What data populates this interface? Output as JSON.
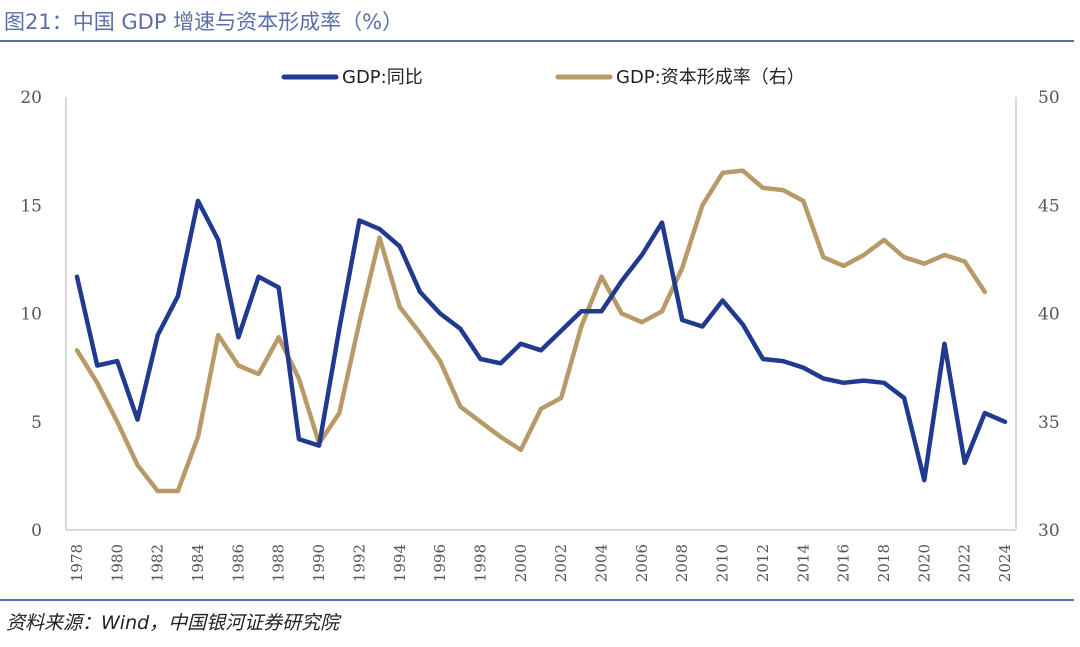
{
  "header": {
    "title": "图21：中国 GDP 增速与资本形成率（%）"
  },
  "footer": {
    "source": "资料来源：Wind，中国银河证券研究院"
  },
  "colors": {
    "accent": "#5a6fa8",
    "gdp_series": "#1f3a8f",
    "capital_series": "#b89968",
    "axis": "#d9d9d9"
  },
  "chart_data": {
    "type": "line",
    "title": "",
    "xlabel": "",
    "ylabel": "",
    "y_left_range": [
      0,
      20
    ],
    "y_left_ticks": [
      "0",
      "5",
      "10",
      "15",
      "20"
    ],
    "y_right_range": [
      30,
      50
    ],
    "y_right_ticks": [
      "30",
      "35",
      "40",
      "45",
      "50"
    ],
    "x_range": [
      1978,
      2024
    ],
    "x_ticks": [
      "1978",
      "1980",
      "1982",
      "1984",
      "1986",
      "1988",
      "1990",
      "1992",
      "1994",
      "1996",
      "1998",
      "2000",
      "2002",
      "2004",
      "2006",
      "2008",
      "2010",
      "2012",
      "2014",
      "2016",
      "2018",
      "2020",
      "2022",
      "2024"
    ],
    "legend_position": "top",
    "grid": false,
    "series": [
      {
        "name": "GDP:同比",
        "axis": "left",
        "x": [
          1978,
          1979,
          1980,
          1981,
          1982,
          1983,
          1984,
          1985,
          1986,
          1987,
          1988,
          1989,
          1990,
          1991,
          1992,
          1993,
          1994,
          1995,
          1996,
          1997,
          1998,
          1999,
          2000,
          2001,
          2002,
          2003,
          2004,
          2005,
          2006,
          2007,
          2008,
          2009,
          2010,
          2011,
          2012,
          2013,
          2014,
          2015,
          2016,
          2017,
          2018,
          2019,
          2020,
          2021,
          2022,
          2023,
          2024
        ],
        "values": [
          11.7,
          7.6,
          7.8,
          5.1,
          9.0,
          10.8,
          15.2,
          13.4,
          8.9,
          11.7,
          11.2,
          4.2,
          3.9,
          9.3,
          14.3,
          13.9,
          13.1,
          11.0,
          10.0,
          9.3,
          7.9,
          7.7,
          8.6,
          8.3,
          9.2,
          10.1,
          10.1,
          11.5,
          12.7,
          14.2,
          9.7,
          9.4,
          10.6,
          9.5,
          7.9,
          7.8,
          7.5,
          7.0,
          6.8,
          6.9,
          6.8,
          6.1,
          2.3,
          8.6,
          3.1,
          5.4,
          5.0
        ]
      },
      {
        "name": "GDP:资本形成率（右）",
        "axis": "right",
        "x": [
          1978,
          1979,
          1980,
          1981,
          1982,
          1983,
          1984,
          1985,
          1986,
          1987,
          1988,
          1989,
          1990,
          1991,
          1992,
          1993,
          1994,
          1995,
          1996,
          1997,
          1998,
          1999,
          2000,
          2001,
          2002,
          2003,
          2004,
          2005,
          2006,
          2007,
          2008,
          2009,
          2010,
          2011,
          2012,
          2013,
          2014,
          2015,
          2016,
          2017,
          2018,
          2019,
          2020,
          2021,
          2022,
          2023
        ],
        "values": [
          38.3,
          36.8,
          35.0,
          33.0,
          31.8,
          31.8,
          34.3,
          39.0,
          37.6,
          37.2,
          38.9,
          37.0,
          34.0,
          35.4,
          39.6,
          43.5,
          40.3,
          39.1,
          37.8,
          35.7,
          35.0,
          34.3,
          33.7,
          35.6,
          36.1,
          39.4,
          41.7,
          40.0,
          39.6,
          40.1,
          42.1,
          45.0,
          46.5,
          46.6,
          45.8,
          45.7,
          45.2,
          42.6,
          42.2,
          42.7,
          43.4,
          42.6,
          42.3,
          42.7,
          42.4,
          41.0
        ]
      }
    ]
  }
}
